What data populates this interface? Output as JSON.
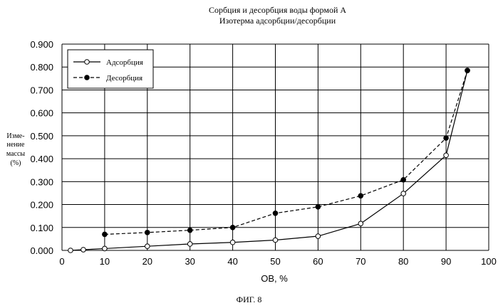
{
  "chart_data": {
    "type": "line",
    "title": "Сорбция и десорбция воды формой А",
    "subtitle": "Изотерма адсорбции/десорбции",
    "xlabel": "ОВ, %",
    "ylabel_lines": [
      "Изме-",
      "нение",
      "массы",
      "(%)"
    ],
    "xlim": [
      0,
      100
    ],
    "ylim": [
      0,
      0.9
    ],
    "x_ticks": [
      "0",
      "10",
      "20",
      "30",
      "40",
      "50",
      "60",
      "70",
      "80",
      "90",
      "100"
    ],
    "y_ticks": [
      "0.000",
      "0.100",
      "0.200",
      "0.300",
      "0.400",
      "0.500",
      "0.600",
      "0.700",
      "0.800",
      "0.900"
    ],
    "grid": true,
    "legend_position": "top-left",
    "series": [
      {
        "name": "Адсорбция",
        "marker": "open-circle",
        "line": "solid",
        "x": [
          2,
          5,
          10,
          20,
          30,
          40,
          50,
          60,
          70,
          80,
          90,
          95
        ],
        "y": [
          0.0,
          0.003,
          0.008,
          0.018,
          0.028,
          0.035,
          0.045,
          0.062,
          0.117,
          0.248,
          0.415,
          0.785
        ]
      },
      {
        "name": "Десорбция",
        "marker": "filled-circle",
        "line": "dashed",
        "x": [
          10,
          20,
          30,
          40,
          50,
          60,
          70,
          80,
          90,
          95
        ],
        "y": [
          0.07,
          0.078,
          0.088,
          0.1,
          0.162,
          0.19,
          0.238,
          0.308,
          0.49,
          0.785
        ]
      }
    ]
  },
  "caption": "ФИГ. 8"
}
